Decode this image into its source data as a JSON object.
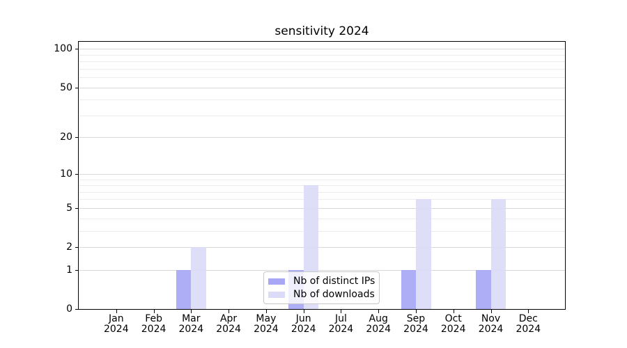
{
  "chart_data": {
    "type": "bar",
    "title": "sensitivity 2024",
    "categories": [
      {
        "month": "Jan",
        "year": "2024"
      },
      {
        "month": "Feb",
        "year": "2024"
      },
      {
        "month": "Mar",
        "year": "2024"
      },
      {
        "month": "Apr",
        "year": "2024"
      },
      {
        "month": "May",
        "year": "2024"
      },
      {
        "month": "Jun",
        "year": "2024"
      },
      {
        "month": "Jul",
        "year": "2024"
      },
      {
        "month": "Aug",
        "year": "2024"
      },
      {
        "month": "Sep",
        "year": "2024"
      },
      {
        "month": "Oct",
        "year": "2024"
      },
      {
        "month": "Nov",
        "year": "2024"
      },
      {
        "month": "Dec",
        "year": "2024"
      }
    ],
    "series": [
      {
        "name": "Nb of distinct IPs",
        "color": "#a7a7f5",
        "values": [
          0,
          0,
          1,
          0,
          0,
          1,
          0,
          0,
          1,
          0,
          1,
          0
        ]
      },
      {
        "name": "Nb of downloads",
        "color": "#dbdbf8",
        "values": [
          0,
          0,
          2,
          0,
          0,
          8,
          0,
          0,
          6,
          0,
          6,
          0
        ]
      }
    ],
    "yscale": "log1p",
    "y_major_ticks": [
      0,
      1,
      2,
      5,
      10,
      20,
      50,
      100
    ],
    "y_minor_gridlines": [
      3,
      4,
      6,
      7,
      8,
      9,
      30,
      40,
      60,
      70,
      80,
      90
    ],
    "ylim": [
      0,
      115
    ],
    "xlabel": "",
    "ylabel": "",
    "grid": true,
    "legend_position": "lower center"
  },
  "colors": {
    "major_grid": "#d8d8d8",
    "minor_grid": "#ececec",
    "axis": "#000000",
    "background": "#ffffff",
    "legend_border": "#c8c8c8"
  }
}
